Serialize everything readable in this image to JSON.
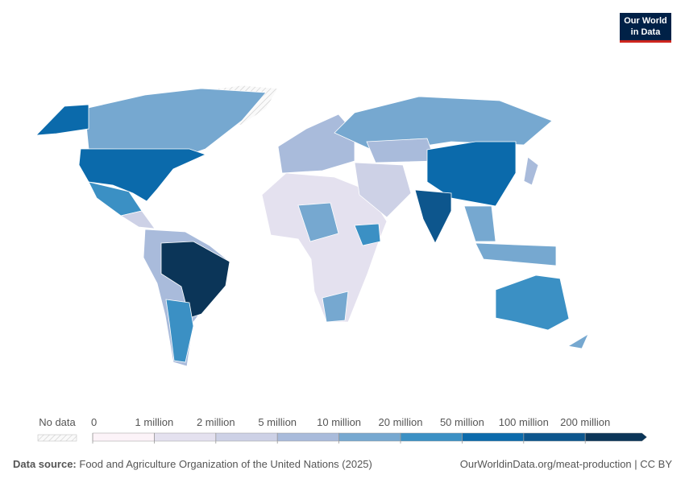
{
  "logo": {
    "line1": "Our World",
    "line2": "in Data"
  },
  "chart_data": {
    "type": "choropleth",
    "legend": {
      "no_data_label": "No data",
      "ticks": [
        0,
        {
          "value": 1000000,
          "label": "1 million"
        },
        {
          "value": 2000000,
          "label": "2 million"
        },
        {
          "value": 5000000,
          "label": "5 million"
        },
        {
          "value": 10000000,
          "label": "10 million"
        },
        {
          "value": 20000000,
          "label": "20 million"
        },
        {
          "value": 50000000,
          "label": "50 million"
        },
        {
          "value": 100000000,
          "label": "100 million"
        },
        {
          "value": 200000000,
          "label": "200 million"
        }
      ],
      "colors": [
        "#fcf3f8",
        "#e4e1ef",
        "#cdd1e6",
        "#a9bbdb",
        "#76a8d0",
        "#3b90c4",
        "#0b6aab",
        "#0d568d",
        "#0b3558"
      ]
    }
  },
  "footer": {
    "source_label": "Data source:",
    "source": "Food and Agriculture Organization of the United Nations (2025)",
    "url": "OurWorldinData.org/meat-production | CC BY"
  }
}
